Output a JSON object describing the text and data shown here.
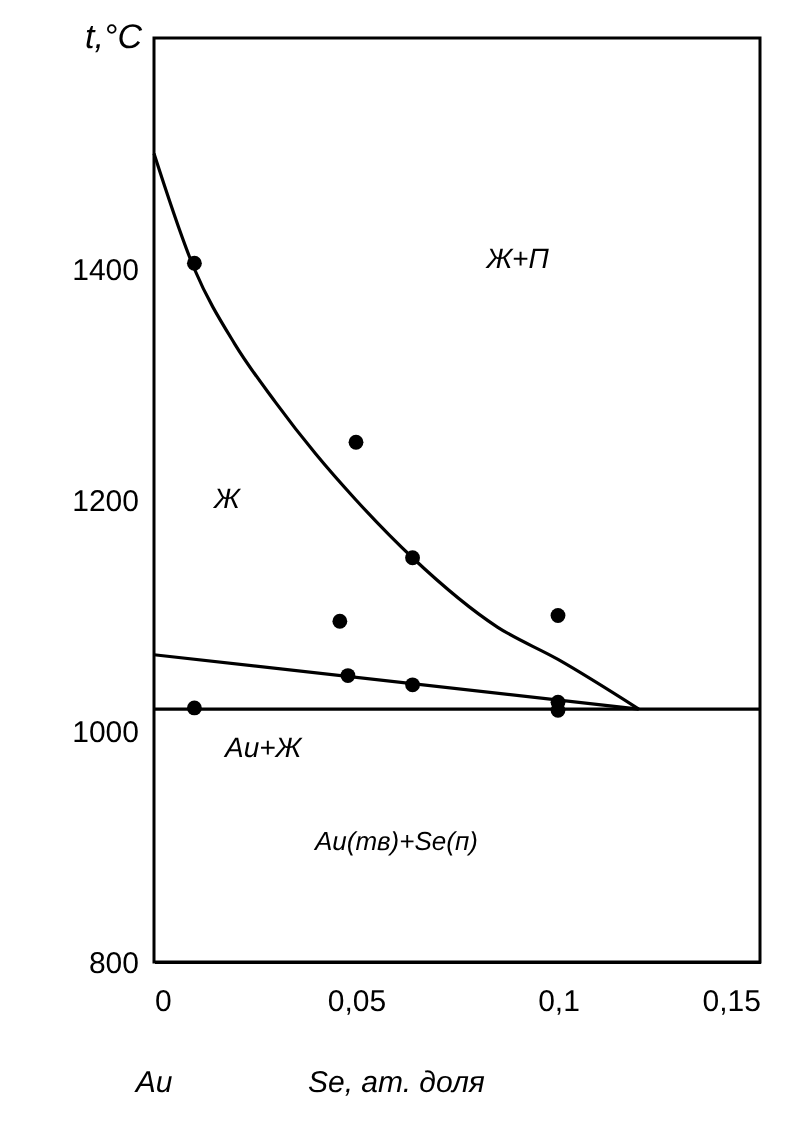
{
  "chart_data": {
    "type": "scatter",
    "xlabel": "Se, ат. доля",
    "ylabel": "t,°C",
    "xlim": [
      0,
      0.15
    ],
    "ylim": [
      800,
      1600
    ],
    "xticks": [
      {
        "value": 0,
        "label": "0"
      },
      {
        "value": 0.05,
        "label": "0,05"
      },
      {
        "value": 0.1,
        "label": "0,1"
      },
      {
        "value": 0.15,
        "label": "0,15"
      }
    ],
    "yticks": [
      800,
      1000,
      1200,
      1400
    ],
    "grid": false,
    "series": [
      {
        "color": "#000000",
        "marker": "circle",
        "x": [
          0.01,
          0.05,
          0.064,
          0.046,
          0.1,
          0.048,
          0.064,
          0.1,
          0.1,
          0.01
        ],
        "values": [
          1405,
          1250,
          1150,
          1095,
          1100,
          1048,
          1040,
          1025,
          1018,
          1020
        ]
      },
      {
        "type": "line",
        "color": "#000000",
        "marker": "none",
        "line_style": "solid",
        "x": [
          0,
          0.01,
          0.02,
          0.03,
          0.04,
          0.05,
          0.064,
          0.085,
          0.1,
          0.12
        ],
        "values": [
          1500,
          1400,
          1335,
          1285,
          1240,
          1200,
          1150,
          1090,
          1062,
          1019
        ]
      },
      {
        "type": "line",
        "color": "#000000",
        "marker": "none",
        "line_style": "solid",
        "x": [
          0,
          0.12
        ],
        "values": [
          1066,
          1019
        ]
      },
      {
        "type": "line",
        "color": "#000000",
        "marker": "none",
        "line_style": "solid",
        "x": [
          0,
          0.15
        ],
        "values": [
          1019,
          1019
        ]
      }
    ],
    "annotations": [
      "Ж+П",
      "Ж",
      "Au+Ж",
      "Au(тв)+Se(п)",
      "Au"
    ]
  }
}
